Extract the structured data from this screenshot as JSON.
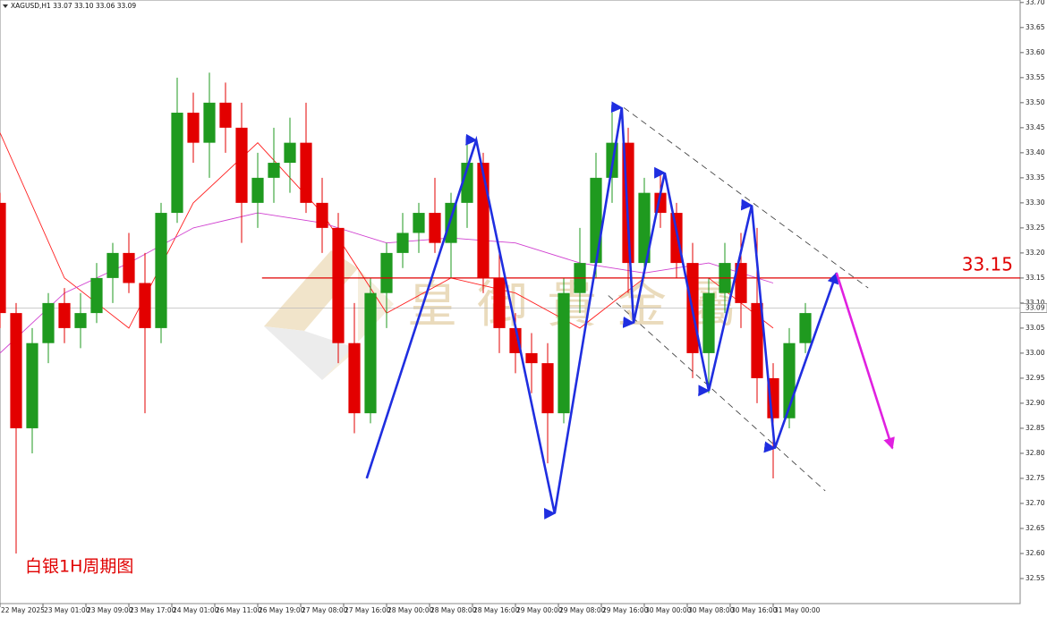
{
  "chart_data": {
    "type": "candlestick",
    "header": "XAGUSD,H1  33.07 33.10 33.06 33.09",
    "caption": "白银1H周期图",
    "watermark": "皇御貴金屬",
    "up_color": "#1f9a1f",
    "down_color": "#e30000",
    "x": [
      0,
      3,
      6,
      9,
      12,
      15,
      18,
      21,
      24,
      27,
      30,
      33,
      36,
      39,
      42,
      45,
      48,
      51,
      54,
      57,
      60,
      63,
      66,
      69,
      72,
      75,
      78,
      81,
      84,
      87,
      90,
      93,
      96,
      99,
      102,
      105,
      108,
      111,
      114,
      117,
      120,
      123,
      126,
      129,
      132,
      135,
      138,
      141,
      144,
      147,
      150
    ],
    "open": [
      33.3,
      33.08,
      32.85,
      33.02,
      33.1,
      33.05,
      33.08,
      33.15,
      33.2,
      33.14,
      33.05,
      33.28,
      33.48,
      33.42,
      33.5,
      33.45,
      33.3,
      33.35,
      33.38,
      33.42,
      33.3,
      33.25,
      33.02,
      32.88,
      33.12,
      33.2,
      33.24,
      33.28,
      33.22,
      33.3,
      33.38,
      33.15,
      33.05,
      33.0,
      32.98,
      32.88,
      33.12,
      33.18,
      33.35,
      33.42,
      33.18,
      33.32,
      33.28,
      33.18,
      33.0,
      33.12,
      33.18,
      33.1,
      32.95,
      32.87,
      33.02
    ],
    "high": [
      33.32,
      33.1,
      33.05,
      33.12,
      33.13,
      33.12,
      33.18,
      33.22,
      33.24,
      33.2,
      33.3,
      33.55,
      33.52,
      33.56,
      33.54,
      33.5,
      33.4,
      33.45,
      33.47,
      33.5,
      33.35,
      33.28,
      33.1,
      33.15,
      33.22,
      33.28,
      33.3,
      33.35,
      33.32,
      33.42,
      33.4,
      33.2,
      33.08,
      33.04,
      33.02,
      33.15,
      33.25,
      33.4,
      33.48,
      33.45,
      33.35,
      33.36,
      33.3,
      33.22,
      33.15,
      33.22,
      33.24,
      33.25,
      32.98,
      33.05,
      33.1
    ],
    "low": [
      33.05,
      32.6,
      32.8,
      32.98,
      33.02,
      33.01,
      33.06,
      33.1,
      33.12,
      32.88,
      33.02,
      33.26,
      33.38,
      33.35,
      33.4,
      33.22,
      33.25,
      33.3,
      33.32,
      33.28,
      33.2,
      32.98,
      32.84,
      32.86,
      33.05,
      33.17,
      33.2,
      33.2,
      33.15,
      33.25,
      33.12,
      33.0,
      32.96,
      32.92,
      32.78,
      32.86,
      33.08,
      33.15,
      33.3,
      33.12,
      33.15,
      33.25,
      33.15,
      32.95,
      32.92,
      33.08,
      33.05,
      32.9,
      32.75,
      32.85,
      33.0
    ],
    "close": [
      33.08,
      32.85,
      33.02,
      33.1,
      33.05,
      33.08,
      33.15,
      33.2,
      33.14,
      33.05,
      33.28,
      33.48,
      33.42,
      33.5,
      33.45,
      33.3,
      33.35,
      33.38,
      33.42,
      33.3,
      33.25,
      33.02,
      32.88,
      33.12,
      33.2,
      33.24,
      33.28,
      33.22,
      33.3,
      33.38,
      33.15,
      33.05,
      33.0,
      32.98,
      32.88,
      33.12,
      33.18,
      33.35,
      33.42,
      33.18,
      33.32,
      33.28,
      33.18,
      33.0,
      33.12,
      33.18,
      33.1,
      32.95,
      32.87,
      33.02,
      33.08
    ],
    "moving_averages": [
      {
        "color": "#ff2020",
        "x": [
          0,
          12,
          24,
          36,
          48,
          60,
          72,
          84,
          96,
          108,
          120,
          132,
          144
        ],
        "values": [
          33.44,
          33.15,
          33.05,
          33.3,
          33.42,
          33.28,
          33.08,
          33.15,
          33.12,
          33.05,
          33.15,
          33.15,
          33.05
        ]
      },
      {
        "color": "#d040d0",
        "x": [
          0,
          12,
          24,
          36,
          48,
          60,
          72,
          84,
          96,
          108,
          120,
          132,
          144
        ],
        "values": [
          33.0,
          33.12,
          33.18,
          33.25,
          33.28,
          33.26,
          33.22,
          33.23,
          33.22,
          33.18,
          33.16,
          33.18,
          33.14
        ]
      }
    ],
    "level": 33.15,
    "level_color": "#e00000",
    "current_price": 33.09,
    "zigzag": {
      "color": "#1f2ee0",
      "x": [
        68.3,
        88.7,
        103.3,
        115.8,
        118,
        123.8,
        132,
        140,
        144.3,
        155.8
      ],
      "y": [
        32.75,
        33.425,
        32.68,
        33.49,
        33.06,
        33.36,
        32.925,
        33.295,
        32.81,
        33.16
      ]
    },
    "forecast": {
      "color": "#e020e0",
      "x": [
        155.8,
        166.2
      ],
      "y": [
        33.16,
        32.81
      ]
    },
    "channel": [
      {
        "x": [
          116.2,
          161.7
        ],
        "y": [
          33.49,
          33.13
        ]
      },
      {
        "x": [
          113.3,
          153.7
        ],
        "y": [
          33.115,
          32.725
        ]
      }
    ],
    "xlim": [
      0,
      190
    ],
    "ylim": [
      32.5,
      33.705
    ],
    "xticks": [
      {
        "value": 0,
        "label": "22 May 2025"
      },
      {
        "value": 8,
        "label": "23 May 01:00"
      },
      {
        "value": 16,
        "label": "23 May 09:00"
      },
      {
        "value": 24,
        "label": "23 May 17:00"
      },
      {
        "value": 32,
        "label": "24 May 01:00"
      },
      {
        "value": 40,
        "label": "26 May 11:00"
      },
      {
        "value": 48,
        "label": "26 May 19:00"
      },
      {
        "value": 56,
        "label": "27 May 08:00"
      },
      {
        "value": 64,
        "label": "27 May 16:00"
      },
      {
        "value": 72,
        "label": "28 May 00:00"
      },
      {
        "value": 80,
        "label": "28 May 08:00"
      },
      {
        "value": 88,
        "label": "28 May 16:00"
      },
      {
        "value": 96,
        "label": "29 May 00:00"
      },
      {
        "value": 104,
        "label": "29 May 08:00"
      },
      {
        "value": 112,
        "label": "29 May 16:00"
      },
      {
        "value": 120,
        "label": "30 May 00:00"
      },
      {
        "value": 128,
        "label": "30 May 08:00"
      },
      {
        "value": 136,
        "label": "30 May 16:00"
      },
      {
        "value": 144,
        "label": "31 May 00:00"
      }
    ],
    "yticks": [
      {
        "value": 33.7,
        "label": "33.70"
      },
      33.65,
      {
        "value": 33.6,
        "label": "33.60"
      },
      33.55,
      {
        "value": 33.5,
        "label": "33.50"
      },
      33.45,
      {
        "value": 33.4,
        "label": "33.40"
      },
      33.35,
      {
        "value": 33.3,
        "label": "33.30"
      },
      33.25,
      {
        "value": 33.2,
        "label": "33.20"
      },
      33.15,
      {
        "value": 33.1,
        "label": "33.10"
      },
      33.05,
      {
        "value": 33.0,
        "label": "33.00"
      },
      32.95,
      {
        "value": 32.9,
        "label": "32.90"
      },
      32.85,
      {
        "value": 32.8,
        "label": "32.80"
      },
      32.75,
      {
        "value": 32.7,
        "label": "32.70"
      },
      32.65,
      {
        "value": 32.6,
        "label": "32.60"
      },
      32.55
    ]
  }
}
